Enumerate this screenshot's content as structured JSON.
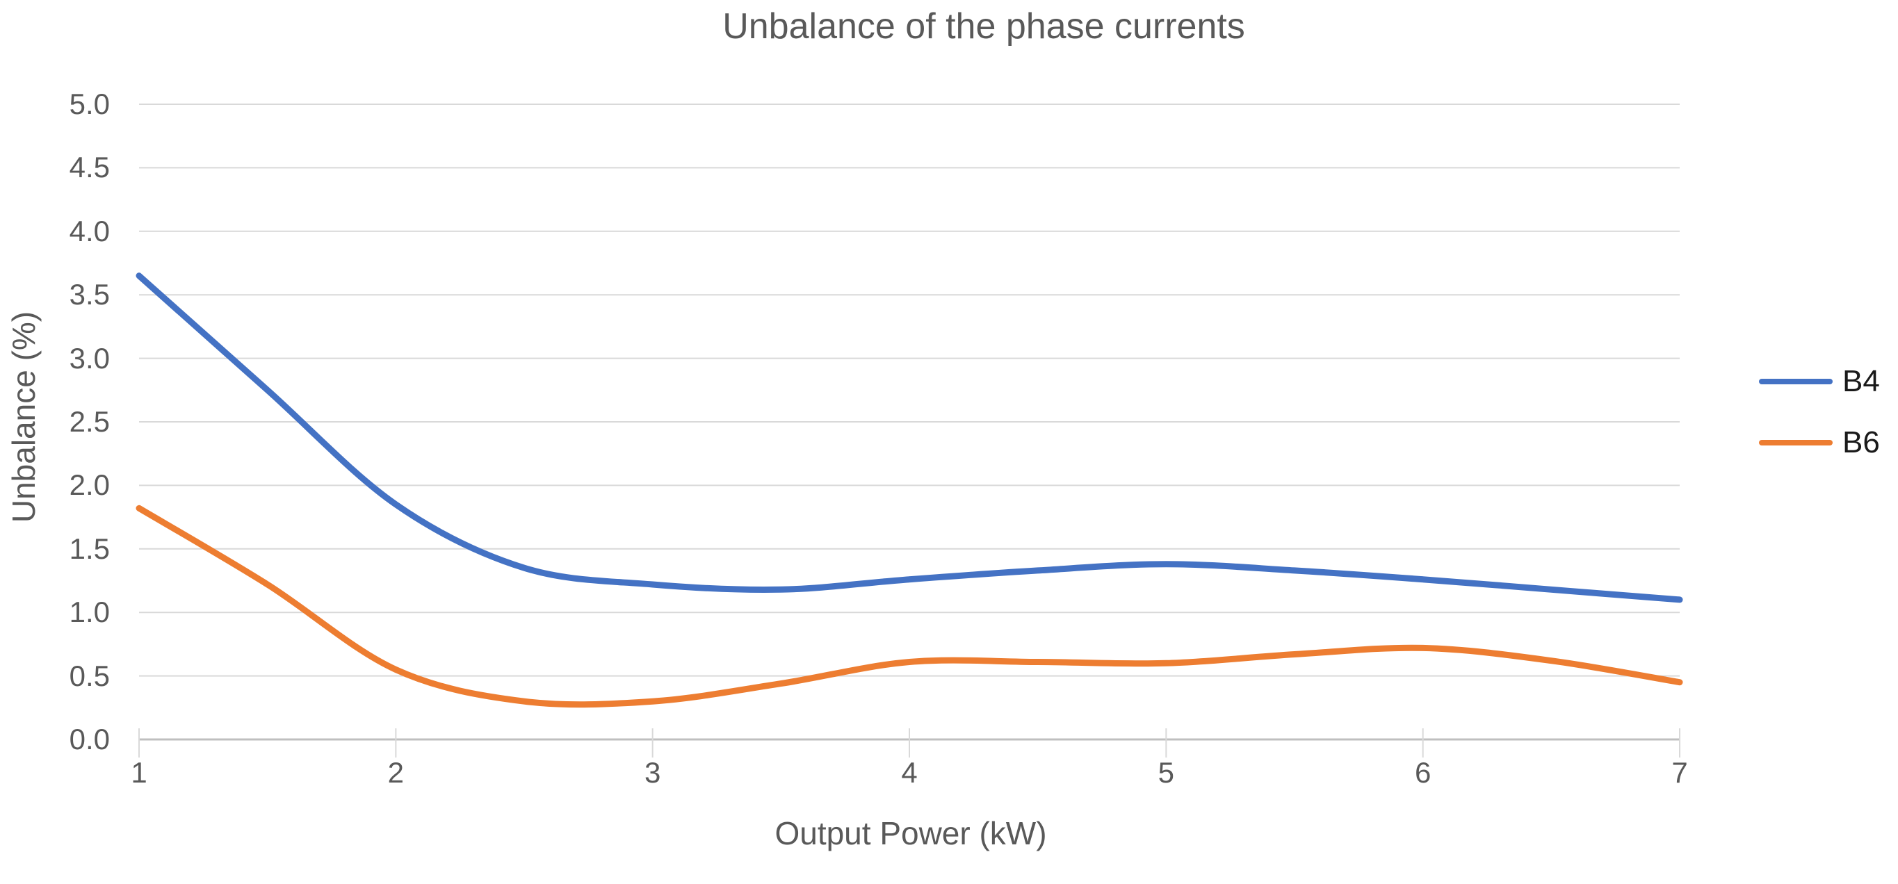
{
  "chart": {
    "title": "Unbalance of the phase currents",
    "x_axis": {
      "label": "Output Power (kW)",
      "tick_labels": [
        "1",
        "2",
        "3",
        "4",
        "5",
        "6",
        "7"
      ]
    },
    "y_axis": {
      "label": "Unbalance (%)",
      "tick_labels": [
        "0.0",
        "0.5",
        "1.0",
        "1.5",
        "2.0",
        "2.5",
        "3.0",
        "3.5",
        "4.0",
        "4.5",
        "5.0"
      ]
    },
    "legend": {
      "position": "right",
      "entries": [
        {
          "label": "B4",
          "color": "#4472C4"
        },
        {
          "label": "B6",
          "color": "#ED7D31"
        }
      ]
    },
    "colors": {
      "series_b4": "#4472C4",
      "series_b6": "#ED7D31",
      "gridline": "#D9D9D9",
      "axis_line": "#BFBFBF",
      "text_gray": "#595959",
      "legend_text": "#1a1a1a",
      "background": "#ffffff"
    }
  },
  "chart_data": {
    "type": "line",
    "title": "Unbalance of the phase currents",
    "xlabel": "Output Power (kW)",
    "ylabel": "Unbalance (%)",
    "x": [
      1.0,
      1.5,
      2.0,
      2.5,
      3.0,
      3.5,
      4.0,
      4.5,
      5.0,
      5.5,
      6.0,
      6.5,
      7.0
    ],
    "series": [
      {
        "name": "B4",
        "color": "#4472C4",
        "values": [
          3.65,
          2.75,
          1.85,
          1.35,
          1.22,
          1.18,
          1.26,
          1.33,
          1.38,
          1.33,
          1.26,
          1.18,
          1.1
        ]
      },
      {
        "name": "B6",
        "color": "#ED7D31",
        "values": [
          1.82,
          1.22,
          0.55,
          0.3,
          0.3,
          0.44,
          0.61,
          0.61,
          0.6,
          0.67,
          0.72,
          0.62,
          0.45
        ]
      }
    ],
    "xlim": [
      1,
      7
    ],
    "ylim": [
      0.0,
      5.0
    ],
    "y_tick_step": 0.5,
    "x_tick_step": 1,
    "grid": "horizontal",
    "line_style": "smooth",
    "legend_position": "right-center"
  }
}
